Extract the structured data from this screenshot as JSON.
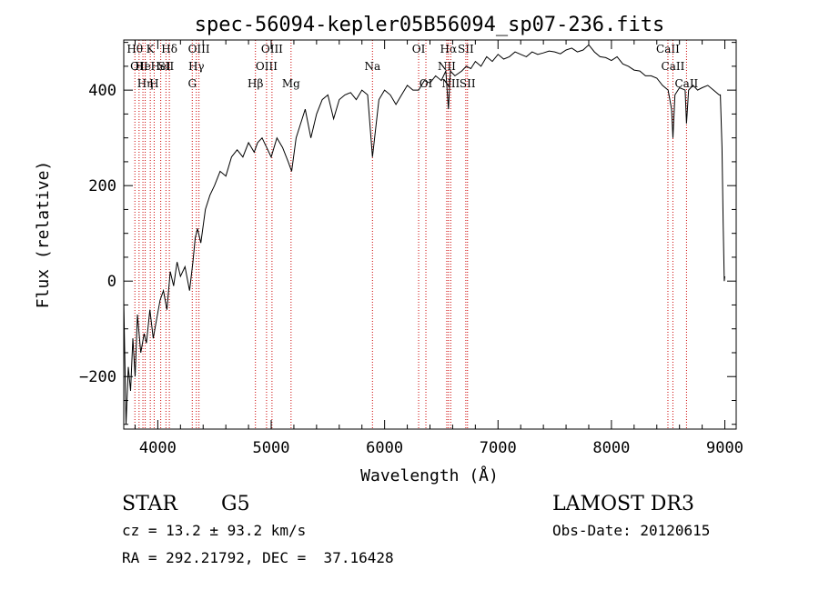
{
  "chart_data": {
    "type": "line",
    "title": "spec-56094-kepler05B56094_sp07-236.fits",
    "xlabel": "Wavelength (Å)",
    "ylabel": "Flux (relative)",
    "xlim": [
      3700,
      9100
    ],
    "ylim": [
      -310,
      505
    ],
    "xticks": [
      4000,
      5000,
      6000,
      7000,
      8000,
      9000
    ],
    "xtick_labels": [
      "4000",
      "5000",
      "6000",
      "7000",
      "8000",
      "9000"
    ],
    "yticks": [
      -200,
      0,
      200,
      400
    ],
    "ytick_labels": [
      "−200",
      "0",
      "200",
      "400"
    ],
    "grid": false,
    "series": [
      {
        "name": "flux",
        "color": "#000000",
        "x": [
          3700,
          3720,
          3740,
          3760,
          3780,
          3800,
          3820,
          3850,
          3880,
          3900,
          3930,
          3960,
          3990,
          4020,
          4050,
          4080,
          4110,
          4140,
          4170,
          4200,
          4240,
          4280,
          4310,
          4330,
          4350,
          4380,
          4420,
          4460,
          4500,
          4550,
          4600,
          4650,
          4700,
          4750,
          4800,
          4850,
          4880,
          4920,
          4960,
          5000,
          5050,
          5100,
          5150,
          5180,
          5220,
          5260,
          5300,
          5350,
          5400,
          5450,
          5500,
          5550,
          5600,
          5650,
          5700,
          5750,
          5800,
          5850,
          5893,
          5950,
          6000,
          6050,
          6100,
          6150,
          6200,
          6250,
          6300,
          6350,
          6400,
          6450,
          6500,
          6540,
          6563,
          6580,
          6620,
          6680,
          6720,
          6760,
          6800,
          6850,
          6900,
          6950,
          7000,
          7050,
          7100,
          7150,
          7200,
          7250,
          7300,
          7350,
          7400,
          7450,
          7500,
          7550,
          7600,
          7650,
          7700,
          7750,
          7800,
          7850,
          7900,
          7950,
          8000,
          8050,
          8100,
          8150,
          8200,
          8250,
          8300,
          8350,
          8400,
          8450,
          8500,
          8530,
          8542,
          8560,
          8600,
          8650,
          8662,
          8680,
          8720,
          8760,
          8800,
          8850,
          8900,
          8950,
          8960,
          8975,
          8985,
          8995,
          9000
        ],
        "values": [
          -40,
          -300,
          -180,
          -230,
          -120,
          -200,
          -70,
          -150,
          -110,
          -130,
          -60,
          -120,
          -80,
          -40,
          -20,
          -60,
          20,
          -10,
          40,
          10,
          30,
          -20,
          40,
          90,
          110,
          80,
          150,
          180,
          200,
          230,
          220,
          260,
          275,
          260,
          290,
          270,
          290,
          300,
          280,
          260,
          300,
          280,
          250,
          230,
          300,
          330,
          360,
          300,
          350,
          380,
          390,
          340,
          380,
          390,
          395,
          380,
          400,
          390,
          260,
          380,
          400,
          390,
          370,
          390,
          410,
          400,
          400,
          420,
          415,
          430,
          420,
          440,
          360,
          440,
          430,
          440,
          450,
          445,
          460,
          450,
          470,
          460,
          475,
          465,
          470,
          480,
          475,
          470,
          480,
          475,
          478,
          482,
          480,
          476,
          484,
          488,
          480,
          484,
          495,
          480,
          470,
          468,
          462,
          470,
          455,
          450,
          442,
          440,
          430,
          430,
          425,
          410,
          400,
          360,
          300,
          390,
          405,
          400,
          330,
          400,
          410,
          400,
          405,
          410,
          400,
          390,
          390,
          280,
          120,
          0,
          10
        ]
      }
    ],
    "lines": [
      {
        "x": 3798,
        "label": "Hθ",
        "row": 0
      },
      {
        "x": 3835,
        "label": "OII",
        "row": 1
      },
      {
        "x": 3869,
        "label": "He",
        "row": 1
      },
      {
        "x": 3889,
        "label": "Hη",
        "row": 2
      },
      {
        "x": 3934,
        "label": "K",
        "row": 0
      },
      {
        "x": 3968,
        "label": "H",
        "row": 2
      },
      {
        "x": 4026,
        "label": "HeI",
        "row": 1
      },
      {
        "x": 4072,
        "label": "SII",
        "row": 1
      },
      {
        "x": 4102,
        "label": "Hδ",
        "row": 0
      },
      {
        "x": 4304,
        "label": "G",
        "row": 2
      },
      {
        "x": 4340,
        "label": "Hγ",
        "row": 1
      },
      {
        "x": 4363,
        "label": "OIII",
        "row": 0
      },
      {
        "x": 4861,
        "label": "Hβ",
        "row": 2
      },
      {
        "x": 4959,
        "label": "OIII",
        "row": 1
      },
      {
        "x": 5007,
        "label": "OIII",
        "row": 0
      },
      {
        "x": 5175,
        "label": "Mg",
        "row": 2
      },
      {
        "x": 5893,
        "label": "Na",
        "row": 1
      },
      {
        "x": 6300,
        "label": "OI",
        "row": 0
      },
      {
        "x": 6364,
        "label": "OI",
        "row": 2
      },
      {
        "x": 6548,
        "label": "NII",
        "row": 1
      },
      {
        "x": 6563,
        "label": "Hα",
        "row": 0
      },
      {
        "x": 6583,
        "label": "NII",
        "row": 2
      },
      {
        "x": 6716,
        "label": "SII",
        "row": 0
      },
      {
        "x": 6731,
        "label": "SII",
        "row": 2
      },
      {
        "x": 8498,
        "label": "CaII",
        "row": 0
      },
      {
        "x": 8542,
        "label": "CaII",
        "row": 1
      },
      {
        "x": 8662,
        "label": "CaII",
        "row": 2
      }
    ]
  },
  "info": {
    "class_label": "STAR",
    "subclass": "G5",
    "survey": "LAMOST DR3",
    "redshift": "cz = 13.2 ± 93.2 km/s",
    "obs_date": "Obs-Date: 20120615",
    "coords": "RA = 292.21792, DEC =  37.16428"
  },
  "colors": {
    "line_marker": "#cc0000",
    "spectrum": "#000000"
  }
}
